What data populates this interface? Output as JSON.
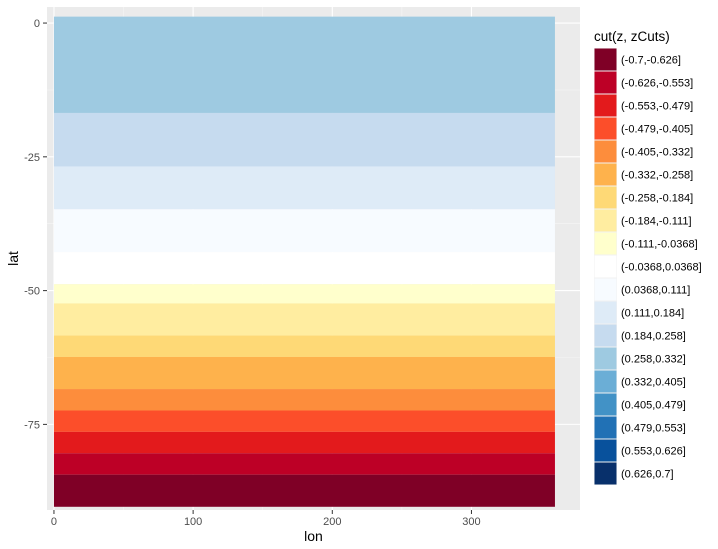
{
  "chart_data": {
    "type": "heatmap",
    "title": "",
    "xlabel": "lon",
    "ylabel": "lat",
    "xlim": [
      -5,
      378
    ],
    "ylim": [
      -91,
      3
    ],
    "x_range": [
      0,
      360
    ],
    "x_ticks": [
      0,
      100,
      200,
      300
    ],
    "x_tick_labels": [
      "0",
      "100",
      "200",
      "300"
    ],
    "y_ticks": [
      0,
      -25,
      -50,
      -75
    ],
    "y_tick_labels": [
      "0",
      "-25",
      "-50",
      "-75"
    ],
    "grid": true,
    "legend": {
      "position": "right",
      "title": "cut(z, zCuts)",
      "items": [
        {
          "label": "(-0.7,-0.626]",
          "color": "#7f0026"
        },
        {
          "label": "(-0.626,-0.553]",
          "color": "#bd0026"
        },
        {
          "label": "(-0.553,-0.479]",
          "color": "#e31a1c"
        },
        {
          "label": "(-0.479,-0.405]",
          "color": "#fc4e2a"
        },
        {
          "label": "(-0.405,-0.332]",
          "color": "#fd8d3c"
        },
        {
          "label": "(-0.332,-0.258]",
          "color": "#feb24c"
        },
        {
          "label": "(-0.258,-0.184]",
          "color": "#fed976"
        },
        {
          "label": "(-0.184,-0.111]",
          "color": "#ffeda0"
        },
        {
          "label": "(-0.111,-0.0368]",
          "color": "#ffffcc"
        },
        {
          "label": "(-0.0368,0.0368]",
          "color": "#ffffff"
        },
        {
          "label": "(0.0368,0.111]",
          "color": "#f7fbff"
        },
        {
          "label": "(0.111,0.184]",
          "color": "#deebf7"
        },
        {
          "label": "(0.184,0.258]",
          "color": "#c6dbef"
        },
        {
          "label": "(0.258,0.332]",
          "color": "#9ecae1"
        },
        {
          "label": "(0.332,0.405]",
          "color": "#6baed6"
        },
        {
          "label": "(0.405,0.479]",
          "color": "#4292c6"
        },
        {
          "label": "(0.479,0.553]",
          "color": "#2171b5"
        },
        {
          "label": "(0.553,0.626]",
          "color": "#08519c"
        },
        {
          "label": "(0.626,0.7]",
          "color": "#08306b"
        }
      ]
    },
    "bands": [
      {
        "lat_top": 1.2,
        "lat_bottom": -16.8,
        "bin": "(0.258,0.332]"
      },
      {
        "lat_top": -16.8,
        "lat_bottom": -26.8,
        "bin": "(0.184,0.258]"
      },
      {
        "lat_top": -26.8,
        "lat_bottom": -34.8,
        "bin": "(0.111,0.184]"
      },
      {
        "lat_top": -34.8,
        "lat_bottom": -42.8,
        "bin": "(0.0368,0.111]"
      },
      {
        "lat_top": -42.8,
        "lat_bottom": -48.8,
        "bin": "(-0.0368,0.0368]"
      },
      {
        "lat_top": -48.8,
        "lat_bottom": -52.4,
        "bin": "(-0.111,-0.0368]"
      },
      {
        "lat_top": -52.4,
        "lat_bottom": -58.4,
        "bin": "(-0.184,-0.111]"
      },
      {
        "lat_top": -58.4,
        "lat_bottom": -62.4,
        "bin": "(-0.258,-0.184]"
      },
      {
        "lat_top": -62.4,
        "lat_bottom": -68.4,
        "bin": "(-0.332,-0.258]"
      },
      {
        "lat_top": -68.4,
        "lat_bottom": -72.4,
        "bin": "(-0.405,-0.332]"
      },
      {
        "lat_top": -72.4,
        "lat_bottom": -76.4,
        "bin": "(-0.479,-0.405]"
      },
      {
        "lat_top": -76.4,
        "lat_bottom": -80.4,
        "bin": "(-0.553,-0.479]"
      },
      {
        "lat_top": -80.4,
        "lat_bottom": -84.4,
        "bin": "(-0.626,-0.553]"
      },
      {
        "lat_top": -84.4,
        "lat_bottom": -90.4,
        "bin": "(-0.7,-0.626]"
      }
    ]
  }
}
